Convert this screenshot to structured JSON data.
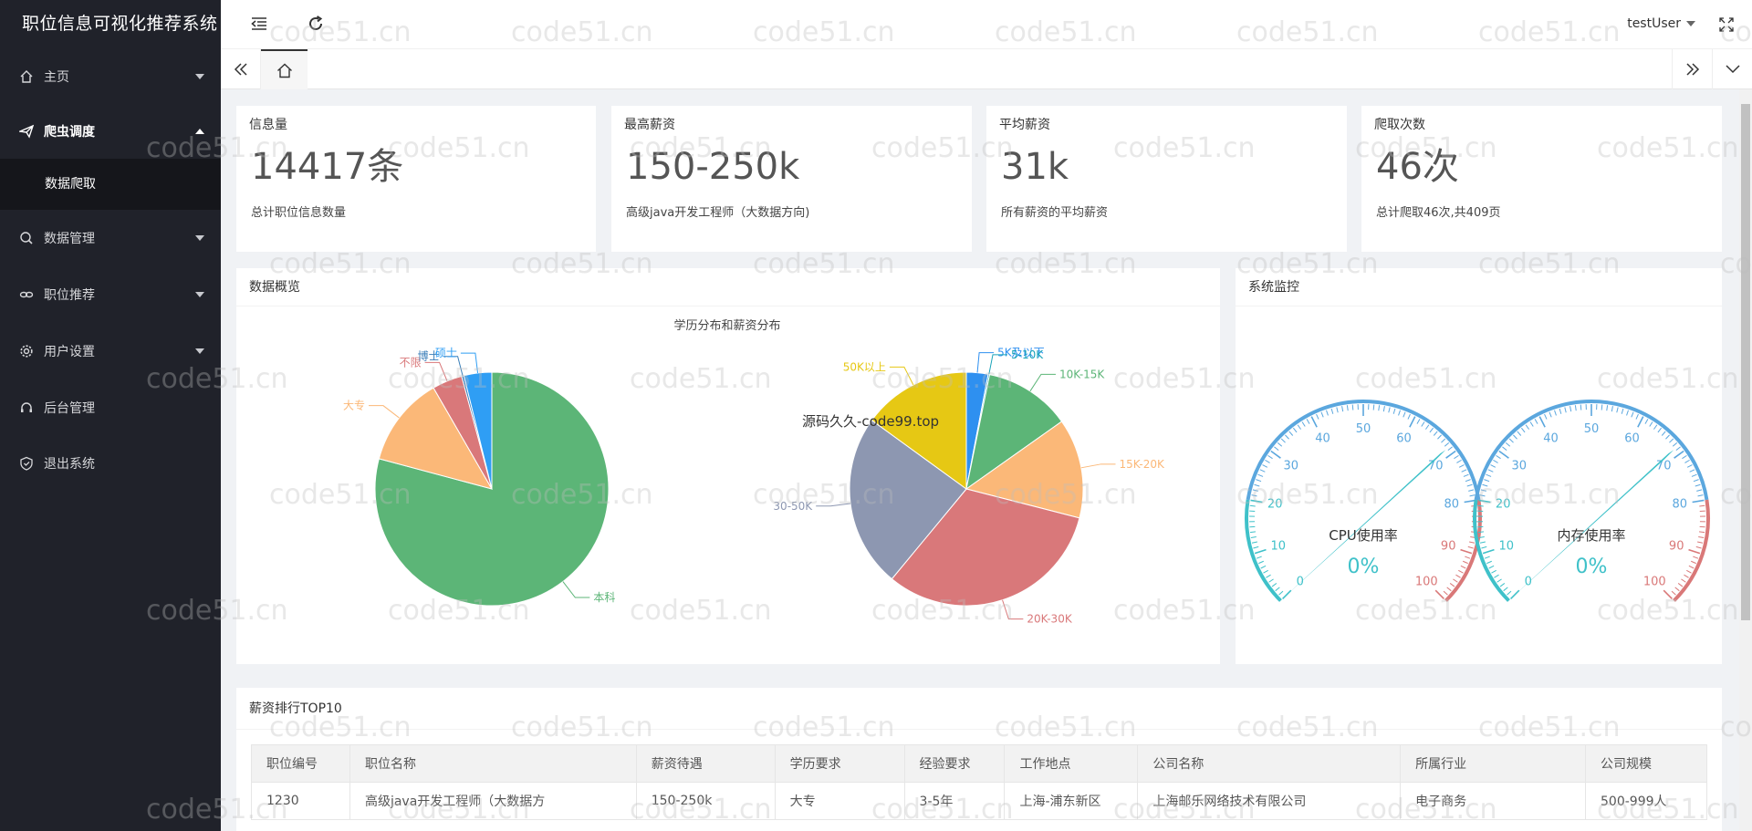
{
  "app": {
    "title": "职位信息可视化推荐系统"
  },
  "sidebar": {
    "items": [
      {
        "label": "主页"
      },
      {
        "label": "爬虫调度"
      },
      {
        "label": "数据管理"
      },
      {
        "label": "职位推荐"
      },
      {
        "label": "用户设置"
      },
      {
        "label": "后台管理"
      },
      {
        "label": "退出系统"
      }
    ],
    "submenu": {
      "label": "数据爬取"
    }
  },
  "header": {
    "user": "testUser"
  },
  "stats": [
    {
      "title": "信息量",
      "value": "14417条",
      "desc": "总计职位信息数量"
    },
    {
      "title": "最高薪资",
      "value": "150-250k",
      "desc": "高级java开发工程师（大数据方向)"
    },
    {
      "title": "平均薪资",
      "value": "31k",
      "desc": "所有薪资的平均薪资"
    },
    {
      "title": "爬取次数",
      "value": "46次",
      "desc": "总计爬取46次,共409页"
    }
  ],
  "overview": {
    "title": "数据概览",
    "overlay_text": "源码久久-code99.top"
  },
  "chart_data": [
    {
      "type": "pie",
      "title": "学历分布和薪资分布",
      "categories": [
        "本科",
        "大专",
        "不限",
        "博士",
        "硕士"
      ],
      "values": [
        76,
        12,
        4,
        0.3,
        3.7
      ],
      "colors": [
        "#5cb577",
        "#fbb878",
        "#d9787a",
        "#3a7eb8",
        "#2f9ef4"
      ]
    },
    {
      "type": "pie",
      "categories": [
        "5K及以下",
        "5-10K",
        "10K-15K",
        "15K-20K",
        "20K-30K",
        "30-50K",
        "50K以上"
      ],
      "values": [
        3,
        0.2,
        12,
        13.8,
        32,
        24,
        15
      ],
      "colors": [
        "#2e90f0",
        "#17a2b8",
        "#5cb577",
        "#fbb878",
        "#d9787a",
        "#8d97b1",
        "#e6c814"
      ]
    }
  ],
  "monitor": {
    "title": "系统监控",
    "gauges": [
      {
        "label": "CPU使用率",
        "value": 0,
        "display": "0%",
        "ticks": [
          "0",
          "10",
          "20",
          "30",
          "40",
          "50",
          "60",
          "70",
          "80",
          "90",
          "100"
        ]
      },
      {
        "label": "内存使用率",
        "value": 0,
        "display": "0%",
        "ticks": [
          "0",
          "10",
          "20",
          "30",
          "40",
          "50",
          "60",
          "70",
          "80",
          "90",
          "100"
        ]
      }
    ]
  },
  "salary_table": {
    "title": "薪资排行TOP10",
    "columns": [
      "职位编号",
      "职位名称",
      "薪资待遇",
      "学历要求",
      "经验要求",
      "工作地点",
      "公司名称",
      "所属行业",
      "公司规模"
    ],
    "rows": [
      [
        "1230",
        "高级java开发工程师（大数据方",
        "150-250k",
        "大专",
        "3-5年",
        "上海-浦东新区",
        "上海邮乐网络技术有限公司",
        "电子商务",
        "500-999人"
      ]
    ]
  },
  "watermark": "code51.cn"
}
